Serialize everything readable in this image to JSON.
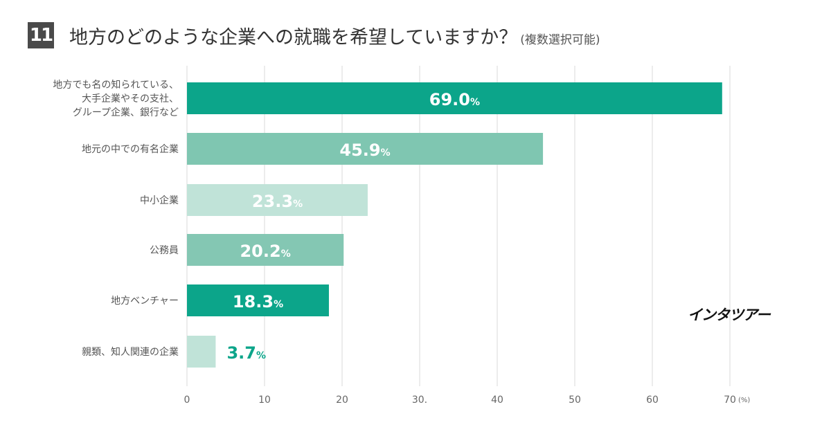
{
  "header": {
    "question_number": "11",
    "title": "地方のどのような企業への就職を希望していますか？",
    "subtitle": "(複数選択可能)"
  },
  "brand": {
    "watermark": "インタツアー"
  },
  "colors": {
    "teal_dark": "#0ca58a",
    "teal_medium": "#7fc6b1",
    "teal_light": "#c0e3d8",
    "teal_mid2": "#84c7b3"
  },
  "chart_data": {
    "type": "bar",
    "orientation": "horizontal",
    "categories": [
      [
        "地方でも名の知られている、",
        "大手企業やその支社、",
        "グループ企業、銀行など"
      ],
      [
        "地元の中での有名企業"
      ],
      [
        "中小企業"
      ],
      [
        "公務員"
      ],
      [
        "地方ベンチャー"
      ],
      [
        "親類、知人関連の企業"
      ]
    ],
    "values": [
      69.0,
      45.9,
      23.3,
      20.2,
      18.3,
      3.7
    ],
    "value_labels": [
      "69.0",
      "45.9",
      "23.3",
      "20.2",
      "18.3",
      "3.7"
    ],
    "value_unit": "%",
    "bar_colors": [
      "#0ca58a",
      "#7fc6b1",
      "#c0e3d8",
      "#84c7b3",
      "#0ca58a",
      "#c0e3d8"
    ],
    "xlim": [
      0,
      70
    ],
    "xticks": [
      0,
      10,
      20,
      30,
      40,
      50,
      60,
      70
    ],
    "xtick_labels": [
      "0",
      "10",
      "20",
      "30.",
      "40",
      "50",
      "60",
      "70"
    ],
    "x_unit_label": "(%)",
    "grid": "vertical"
  }
}
